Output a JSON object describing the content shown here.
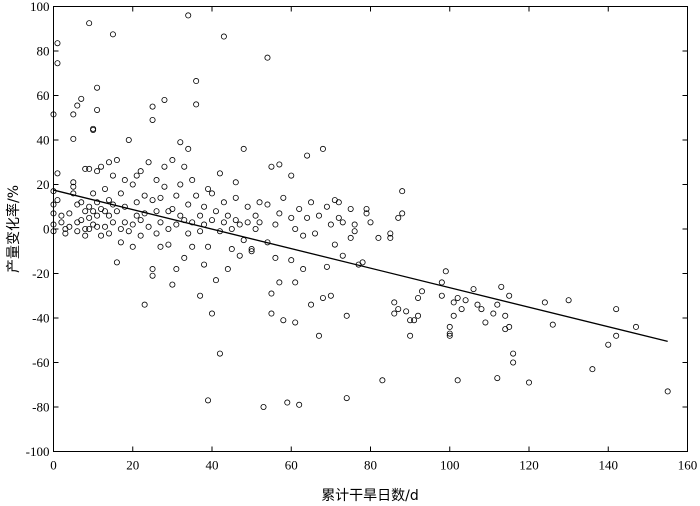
{
  "chart_data": {
    "type": "scatter",
    "xlabel": "累计干旱日数/d",
    "ylabel": "产量变化率/%",
    "xlim": [
      0,
      160
    ],
    "ylim": [
      -100,
      100
    ],
    "xticks": [
      0,
      20,
      40,
      60,
      80,
      100,
      120,
      140,
      160
    ],
    "yticks": [
      -100,
      -80,
      -60,
      -40,
      -20,
      0,
      20,
      40,
      60,
      80,
      100
    ],
    "grid": false,
    "marker": "open-circle",
    "fit_line": {
      "x": [
        0,
        155
      ],
      "y": [
        17.5,
        -50.5
      ]
    },
    "points": [
      [
        0,
        51.5
      ],
      [
        1,
        83.5
      ],
      [
        1,
        74.5
      ],
      [
        2,
        6
      ],
      [
        1,
        25
      ],
      [
        0,
        17
      ],
      [
        0,
        11
      ],
      [
        0,
        2
      ],
      [
        0,
        -1
      ],
      [
        0,
        7
      ],
      [
        1,
        13
      ],
      [
        2,
        3
      ],
      [
        3,
        0
      ],
      [
        3,
        -2
      ],
      [
        4,
        7
      ],
      [
        4,
        1
      ],
      [
        5,
        16
      ],
      [
        5,
        21
      ],
      [
        5,
        19
      ],
      [
        5,
        40.5
      ],
      [
        5,
        51.5
      ],
      [
        6,
        55.5
      ],
      [
        6,
        11
      ],
      [
        6,
        3
      ],
      [
        6,
        -1
      ],
      [
        7,
        58.5
      ],
      [
        7,
        4
      ],
      [
        7,
        12
      ],
      [
        8,
        8
      ],
      [
        8,
        0
      ],
      [
        8,
        -3
      ],
      [
        8,
        27
      ],
      [
        9,
        27
      ],
      [
        9,
        10
      ],
      [
        9,
        5
      ],
      [
        9,
        0
      ],
      [
        9,
        92.5
      ],
      [
        10,
        44.5
      ],
      [
        10,
        45
      ],
      [
        10,
        16
      ],
      [
        10,
        8
      ],
      [
        10,
        2
      ],
      [
        11,
        63.5
      ],
      [
        11,
        53.5
      ],
      [
        11,
        26
      ],
      [
        11,
        12
      ],
      [
        11,
        6
      ],
      [
        11,
        1
      ],
      [
        12,
        28
      ],
      [
        12,
        9
      ],
      [
        12,
        -3
      ],
      [
        13,
        1
      ],
      [
        13,
        8
      ],
      [
        13,
        18
      ],
      [
        14,
        30
      ],
      [
        14,
        13
      ],
      [
        14,
        6
      ],
      [
        14,
        -2
      ],
      [
        15,
        87.5
      ],
      [
        15,
        24
      ],
      [
        15,
        11
      ],
      [
        15,
        3
      ],
      [
        16,
        -15
      ],
      [
        16,
        31
      ],
      [
        16,
        8
      ],
      [
        17,
        16
      ],
      [
        17,
        0
      ],
      [
        17,
        -6
      ],
      [
        18,
        10
      ],
      [
        18,
        3
      ],
      [
        18,
        22
      ],
      [
        19,
        40
      ],
      [
        19,
        -1
      ],
      [
        20,
        2
      ],
      [
        20,
        20
      ],
      [
        20,
        -8
      ],
      [
        21,
        6
      ],
      [
        21,
        12
      ],
      [
        21,
        24
      ],
      [
        22,
        26
      ],
      [
        22,
        4
      ],
      [
        22,
        -3
      ],
      [
        23,
        7
      ],
      [
        23,
        -34
      ],
      [
        23,
        15
      ],
      [
        24,
        30
      ],
      [
        24,
        1
      ],
      [
        25,
        -18
      ],
      [
        25,
        -21
      ],
      [
        25,
        13
      ],
      [
        25,
        55
      ],
      [
        25,
        49
      ],
      [
        26,
        8
      ],
      [
        26,
        -2
      ],
      [
        26,
        22
      ],
      [
        27,
        14
      ],
      [
        27,
        -8
      ],
      [
        27,
        3
      ],
      [
        28,
        58
      ],
      [
        28,
        28
      ],
      [
        28,
        19
      ],
      [
        29,
        8
      ],
      [
        29,
        0
      ],
      [
        29,
        -7
      ],
      [
        30,
        31
      ],
      [
        30,
        -25
      ],
      [
        30,
        9
      ],
      [
        31,
        -18
      ],
      [
        31,
        2
      ],
      [
        31,
        15
      ],
      [
        32,
        39
      ],
      [
        32,
        20
      ],
      [
        32,
        6
      ],
      [
        33,
        -13
      ],
      [
        33,
        4
      ],
      [
        33,
        28
      ],
      [
        34,
        -2
      ],
      [
        34,
        96
      ],
      [
        34,
        36
      ],
      [
        34,
        11
      ],
      [
        35,
        -8
      ],
      [
        35,
        22
      ],
      [
        35,
        3
      ],
      [
        36,
        66.5
      ],
      [
        36,
        56
      ],
      [
        36,
        15
      ],
      [
        37,
        -30
      ],
      [
        37,
        6
      ],
      [
        37,
        -1
      ],
      [
        38,
        -16
      ],
      [
        38,
        10
      ],
      [
        38,
        2
      ],
      [
        39,
        18
      ],
      [
        39,
        -8
      ],
      [
        39,
        -77
      ],
      [
        40,
        -38
      ],
      [
        40,
        16
      ],
      [
        40,
        4
      ],
      [
        41,
        -23
      ],
      [
        41,
        8
      ],
      [
        42,
        -56
      ],
      [
        42,
        25
      ],
      [
        42,
        -1
      ],
      [
        43,
        86.5
      ],
      [
        43,
        12
      ],
      [
        43,
        3
      ],
      [
        44,
        -18
      ],
      [
        44,
        6
      ],
      [
        45,
        -9
      ],
      [
        45,
        0
      ],
      [
        46,
        21
      ],
      [
        46,
        14
      ],
      [
        46,
        4
      ],
      [
        47,
        -12
      ],
      [
        47,
        2
      ],
      [
        48,
        36
      ],
      [
        48,
        -5
      ],
      [
        49,
        10
      ],
      [
        49,
        3
      ],
      [
        50,
        -10
      ],
      [
        50,
        -9
      ],
      [
        51,
        6
      ],
      [
        51,
        0
      ],
      [
        52,
        12
      ],
      [
        52,
        3
      ],
      [
        53,
        -80
      ],
      [
        54,
        77
      ],
      [
        54,
        -6
      ],
      [
        54,
        11
      ],
      [
        55,
        -29
      ],
      [
        55,
        -38
      ],
      [
        55,
        28
      ],
      [
        56,
        -13
      ],
      [
        56,
        2
      ],
      [
        57,
        -24
      ],
      [
        57,
        29
      ],
      [
        57,
        7
      ],
      [
        58,
        -41
      ],
      [
        58,
        14
      ],
      [
        59,
        -78
      ],
      [
        60,
        -14
      ],
      [
        60,
        24
      ],
      [
        60,
        5
      ],
      [
        61,
        -42
      ],
      [
        61,
        -24
      ],
      [
        61,
        0
      ],
      [
        62,
        -79
      ],
      [
        62,
        9
      ],
      [
        63,
        -18
      ],
      [
        63,
        -3
      ],
      [
        64,
        5
      ],
      [
        64,
        33
      ],
      [
        65,
        -34
      ],
      [
        65,
        12
      ],
      [
        66,
        -2
      ],
      [
        67,
        6
      ],
      [
        67,
        -48
      ],
      [
        68,
        -31
      ],
      [
        68,
        36
      ],
      [
        69,
        10
      ],
      [
        69,
        -17
      ],
      [
        70,
        -30
      ],
      [
        70,
        2
      ],
      [
        71,
        13
      ],
      [
        71,
        -7
      ],
      [
        72,
        5
      ],
      [
        72,
        12
      ],
      [
        73,
        3
      ],
      [
        73,
        -12
      ],
      [
        74,
        -76
      ],
      [
        74,
        -39
      ],
      [
        75,
        -4
      ],
      [
        75,
        9
      ],
      [
        76,
        2
      ],
      [
        76,
        -1
      ],
      [
        77,
        -16
      ],
      [
        78,
        -15
      ],
      [
        79,
        9
      ],
      [
        79,
        7
      ],
      [
        80,
        3
      ],
      [
        82,
        -4
      ],
      [
        83,
        -68
      ],
      [
        85,
        -4
      ],
      [
        85,
        -2
      ],
      [
        86,
        -33
      ],
      [
        86,
        -38
      ],
      [
        87,
        -36
      ],
      [
        87,
        5
      ],
      [
        88,
        17
      ],
      [
        88,
        7
      ],
      [
        89,
        -37
      ],
      [
        90,
        -41
      ],
      [
        90,
        -48
      ],
      [
        91,
        -41
      ],
      [
        92,
        -39
      ],
      [
        92,
        -31
      ],
      [
        93,
        -28
      ],
      [
        98,
        -24
      ],
      [
        98,
        -30
      ],
      [
        99,
        -19
      ],
      [
        100,
        -44
      ],
      [
        100,
        -47
      ],
      [
        100,
        -48
      ],
      [
        101,
        -39
      ],
      [
        101,
        -33
      ],
      [
        102,
        -31
      ],
      [
        102,
        -68
      ],
      [
        103,
        -36
      ],
      [
        104,
        -32
      ],
      [
        106,
        -27
      ],
      [
        107,
        -34
      ],
      [
        108,
        -36
      ],
      [
        109,
        -42
      ],
      [
        111,
        -38
      ],
      [
        112,
        -34
      ],
      [
        112,
        -67
      ],
      [
        113,
        -26
      ],
      [
        114,
        -39
      ],
      [
        114,
        -45
      ],
      [
        115,
        -30
      ],
      [
        115,
        -44
      ],
      [
        116,
        -56
      ],
      [
        116,
        -60
      ],
      [
        120,
        -69
      ],
      [
        124,
        -33
      ],
      [
        126,
        -43
      ],
      [
        130,
        -32
      ],
      [
        136,
        -63
      ],
      [
        140,
        -52
      ],
      [
        142,
        -48
      ],
      [
        142,
        -36
      ],
      [
        147,
        -44
      ],
      [
        155,
        -73
      ]
    ]
  }
}
